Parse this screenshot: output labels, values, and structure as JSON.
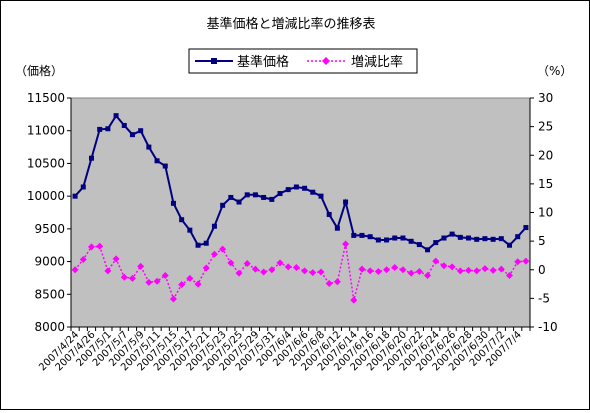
{
  "chart_data": {
    "type": "line",
    "title": "基準価格と増減比率の推移表",
    "left_axis_unit": "（価格）",
    "right_axis_unit": "（%）",
    "y_left": {
      "min": 8000,
      "max": 11500,
      "step": 500,
      "ticks": [
        "8000",
        "8500",
        "9000",
        "9500",
        "10000",
        "10500",
        "11000",
        "11500"
      ]
    },
    "y_right": {
      "min": -10,
      "max": 30,
      "step": 5,
      "ticks": [
        "-10",
        "-5",
        "0",
        "5",
        "10",
        "15",
        "20",
        "25",
        "30"
      ]
    },
    "grid": false,
    "plot_background": "#c0c0c0",
    "legend_position": "top",
    "x_tick_labels": [
      "2007/4/24",
      "2007/4/26",
      "2007/5/1",
      "2007/5/7",
      "2007/5/9",
      "2007/5/11",
      "2007/5/15",
      "2007/5/17",
      "2007/5/21",
      "2007/5/23",
      "2007/5/25",
      "2007/5/29",
      "2007/5/31",
      "2007/6/4",
      "2007/6/6",
      "2007/6/8",
      "2007/6/12",
      "2007/6/14",
      "2007/6/16",
      "2007/6/18",
      "2007/6/20",
      "2007/6/22",
      "2007/6/24",
      "2007/6/26",
      "2007/6/28",
      "2007/6/30",
      "2007/7/2",
      "2007/7/4"
    ],
    "series": [
      {
        "name": "基準価格",
        "axis": "left",
        "color": "#000080",
        "marker": "square",
        "line": "solid",
        "values": [
          10000,
          10140,
          10580,
          11020,
          11030,
          11230,
          11080,
          10940,
          11000,
          10750,
          10540,
          10460,
          9890,
          9640,
          9480,
          9250,
          9280,
          9540,
          9860,
          9980,
          9910,
          10020,
          10020,
          9980,
          9950,
          10040,
          10100,
          10140,
          10120,
          10060,
          10000,
          9720,
          9510,
          9910,
          9400,
          9400,
          9380,
          9330,
          9330,
          9360,
          9360,
          9310,
          9260,
          9180,
          9290,
          9360,
          9420,
          9370,
          9360,
          9340,
          9350,
          9340,
          9350,
          9250,
          9380,
          9520
        ]
      },
      {
        "name": "増減比率",
        "axis": "right",
        "color": "#ff00ff",
        "marker": "diamond",
        "line": "dotted",
        "values": [
          0.0,
          1.8,
          4.0,
          4.1,
          -0.2,
          1.9,
          -1.3,
          -1.5,
          0.6,
          -2.2,
          -2.0,
          -1.0,
          -5.1,
          -2.6,
          -1.5,
          -2.5,
          0.3,
          2.7,
          3.6,
          1.2,
          -0.6,
          1.1,
          0.1,
          -0.4,
          0.0,
          1.2,
          0.5,
          0.4,
          -0.2,
          -0.5,
          -0.4,
          -2.4,
          -2.1,
          4.5,
          -5.3,
          0.1,
          -0.2,
          -0.3,
          0.0,
          0.4,
          0.0,
          -0.6,
          -0.3,
          -1.0,
          1.5,
          0.7,
          0.5,
          -0.2,
          -0.1,
          -0.2,
          0.2,
          -0.1,
          0.1,
          -1.0,
          1.4,
          1.5
        ]
      }
    ]
  }
}
